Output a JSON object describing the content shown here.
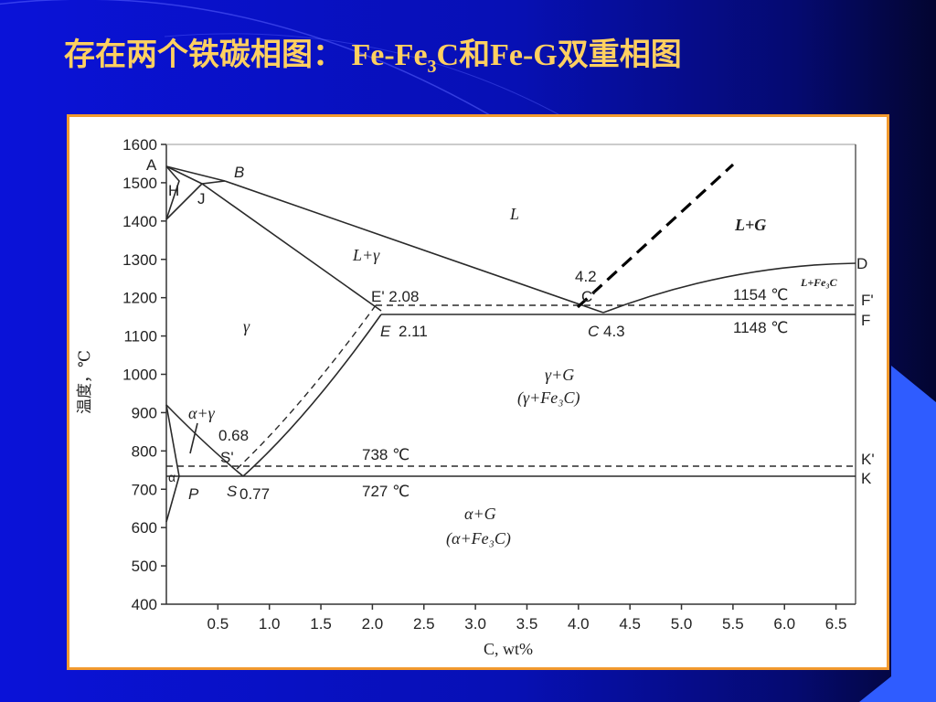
{
  "title": {
    "prefix": "存在两个铁碳相图：",
    "fe": "Fe-Fe",
    "sub3": "3",
    "suffix": "C和Fe-G双重相图"
  },
  "colors": {
    "title": "#ffd060",
    "frame": "#f29a2e",
    "background_left": "#0a12d8",
    "background_right": "#030530",
    "accent_wedge": "#2f5cff"
  },
  "chart_data": {
    "type": "phase-diagram",
    "ylabel": "温度，℃",
    "xlabel": "C, wt%",
    "ylim": [
      400,
      1600
    ],
    "xlim": [
      0,
      6.69
    ],
    "yticks": [
      "1600",
      "1500",
      "1400",
      "1300",
      "1200",
      "1100",
      "1000",
      "900",
      "800",
      "700",
      "600",
      "500",
      "400"
    ],
    "xticks": [
      "0.5",
      "1.0",
      "1.5",
      "2.0",
      "2.5",
      "3.0",
      "3.5",
      "4.0",
      "4.5",
      "5.0",
      "5.5",
      "6.0",
      "6.5"
    ],
    "points": {
      "A": "A",
      "B": "B",
      "H": "H",
      "J": "J",
      "D": "D",
      "E_prime": "E' 2.08",
      "E": "E",
      "E_val": "2.11",
      "C_prime_val": "4.2",
      "C_prime": "C'",
      "C": "C",
      "C_val": "4.3",
      "S_prime_val": "0.68",
      "S_prime": "S'",
      "S": "S",
      "S_val": "0.77",
      "P": "P",
      "alpha": "α",
      "F_prime": "F'",
      "F": "F",
      "K_prime": "K'",
      "K": "K"
    },
    "temperatures": {
      "eutectic_graphite": "1154 ℃",
      "eutectic_cementite": "1148 ℃",
      "eutectoid_graphite": "738 ℃",
      "eutectoid_cementite": "727 ℃"
    },
    "regions": {
      "liquid": "L",
      "liquid_gamma": "L+γ",
      "gamma": "γ",
      "alpha_gamma": "α+γ",
      "gamma_G": "γ+G",
      "gamma_Fe3C": "(γ+Fe₃C)",
      "alpha_G": "α+G",
      "alpha_Fe3C": "(α+Fe₃C)",
      "L_G": "L+G",
      "L_Fe3C": "L+Fe₃C"
    }
  }
}
